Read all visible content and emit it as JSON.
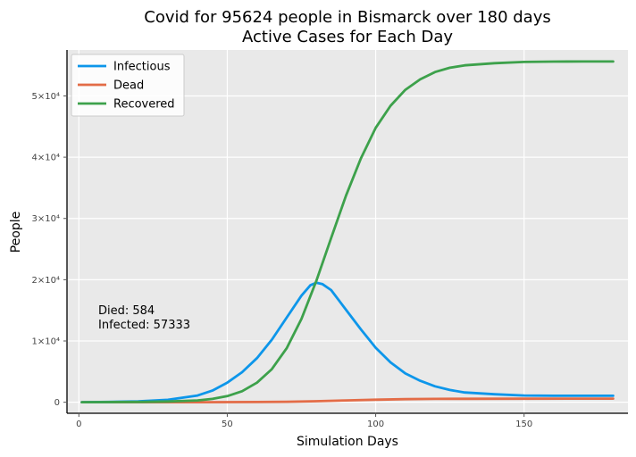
{
  "chart_data": {
    "type": "line",
    "title": "Covid for 95624 people in Bismarck over 180 days",
    "subtitle": "Active Cases for Each Day",
    "xlabel": "Simulation Days",
    "ylabel": "People",
    "xlim": [
      -4,
      185
    ],
    "ylim": [
      -1800,
      57500
    ],
    "xticks": [
      0,
      50,
      100,
      150
    ],
    "yticks": [
      {
        "value": 0,
        "label": "0"
      },
      {
        "value": 10000,
        "label": "1×10⁴"
      },
      {
        "value": 20000,
        "label": "2×10⁴"
      },
      {
        "value": 30000,
        "label": "3×10⁴"
      },
      {
        "value": 40000,
        "label": "4×10⁴"
      },
      {
        "value": 50000,
        "label": "5×10⁴"
      }
    ],
    "grid": true,
    "legend_position": "top-left",
    "annotations": [
      "Died: 584",
      "Infected: 57333"
    ],
    "series": [
      {
        "name": "Infectious",
        "color": "#0d96ea",
        "x": [
          1,
          10,
          20,
          30,
          40,
          45,
          50,
          55,
          60,
          65,
          70,
          75,
          78,
          80,
          82,
          85,
          90,
          95,
          100,
          105,
          110,
          115,
          120,
          125,
          130,
          140,
          150,
          160,
          170,
          180
        ],
        "y": [
          0,
          50,
          150,
          400,
          1100,
          1900,
          3200,
          4900,
          7200,
          10200,
          13800,
          17400,
          19100,
          19500,
          19300,
          18300,
          15100,
          11900,
          8900,
          6500,
          4700,
          3500,
          2600,
          2000,
          1600,
          1300,
          1100,
          1050,
          1050,
          1050
        ]
      },
      {
        "name": "Dead",
        "color": "#e36c47",
        "x": [
          1,
          20,
          40,
          60,
          70,
          80,
          90,
          100,
          110,
          120,
          130,
          150,
          180
        ],
        "y": [
          0,
          0,
          10,
          40,
          80,
          160,
          300,
          420,
          500,
          540,
          560,
          575,
          584
        ]
      },
      {
        "name": "Recovered",
        "color": "#3da14b",
        "x": [
          1,
          20,
          30,
          40,
          45,
          50,
          55,
          60,
          65,
          70,
          75,
          80,
          85,
          90,
          95,
          100,
          105,
          110,
          115,
          120,
          125,
          130,
          140,
          150,
          160,
          170,
          180
        ],
        "y": [
          0,
          50,
          120,
          300,
          550,
          1000,
          1800,
          3200,
          5400,
          8800,
          13600,
          19800,
          26800,
          33700,
          39800,
          44800,
          48400,
          51000,
          52700,
          53900,
          54600,
          55000,
          55350,
          55550,
          55600,
          55620,
          55620
        ]
      }
    ]
  }
}
